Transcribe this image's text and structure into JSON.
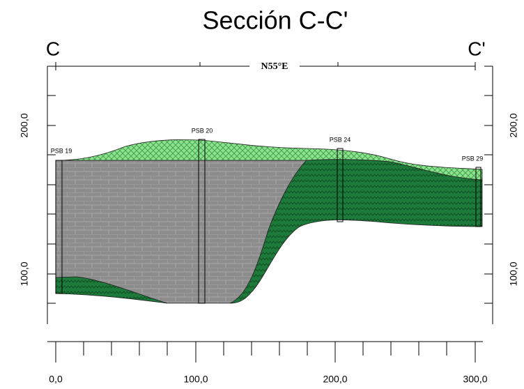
{
  "title": "Sección C-C'",
  "section": {
    "start": "C",
    "end": "C'",
    "direction": "N55°E"
  },
  "boreholes": [
    "PSB 19",
    "PSB 20",
    "PSB 24",
    "PSB 29"
  ],
  "left_axis": {
    "ticks": [
      "200,0",
      "100,0"
    ]
  },
  "right_axis": {
    "ticks": [
      "200,0",
      "100,0"
    ]
  },
  "bottom_axis": {
    "ticks": [
      "0,0",
      "100,0",
      "200,0",
      "300,0"
    ]
  }
}
